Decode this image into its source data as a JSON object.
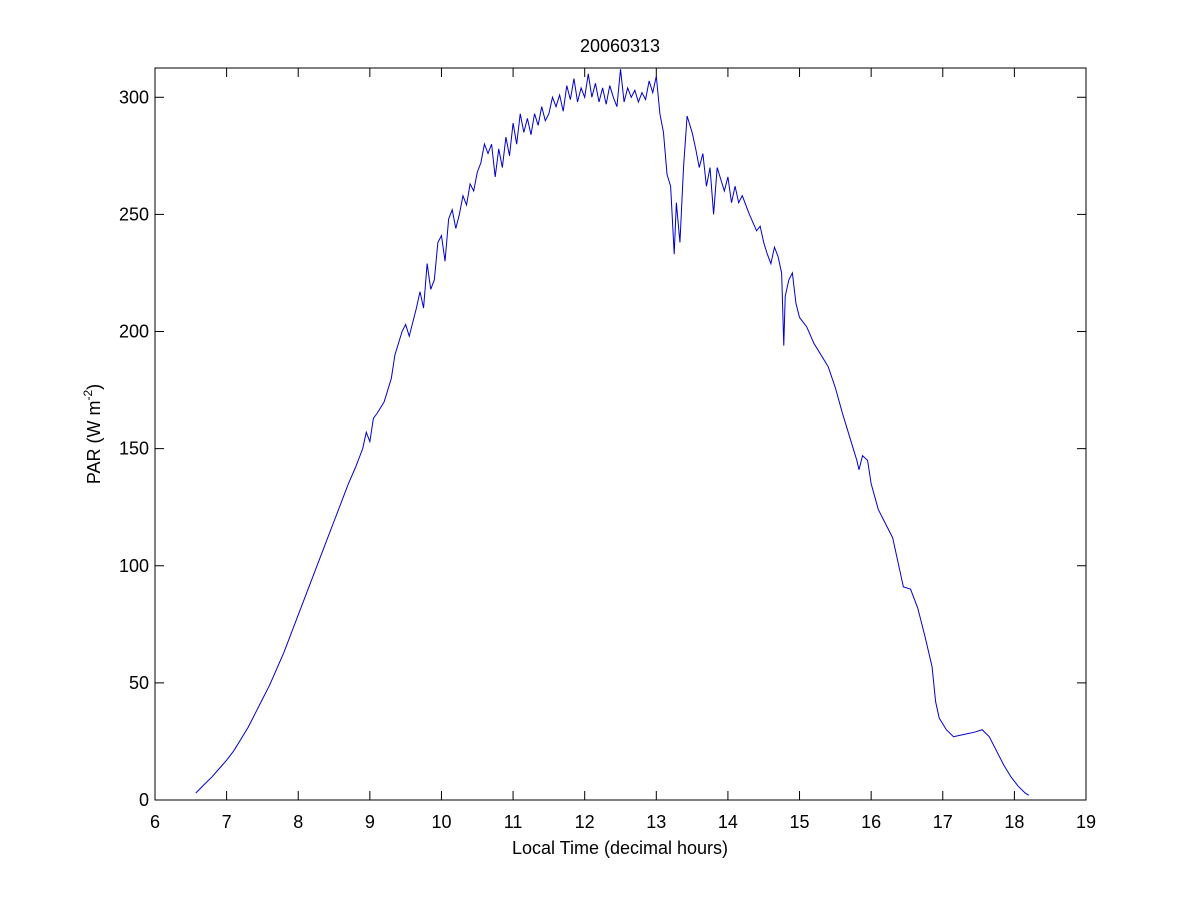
{
  "chart_data": {
    "type": "line",
    "title": "20060313",
    "xlabel": "Local Time (decimal hours)",
    "ylabel": {
      "text": "PAR (W m",
      "superscript": "-2",
      "suffix": ")"
    },
    "color": "#0000cc",
    "xlim": [
      6,
      19
    ],
    "xticks": [
      6,
      7,
      8,
      9,
      10,
      11,
      12,
      13,
      14,
      15,
      16,
      17,
      18,
      19
    ],
    "ylim": [
      0,
      312.5
    ],
    "yticks": [
      0,
      50,
      100,
      150,
      200,
      250,
      300
    ],
    "grid": false,
    "x": [
      6.57,
      6.7,
      6.8,
      6.9,
      7.0,
      7.1,
      7.2,
      7.3,
      7.4,
      7.5,
      7.6,
      7.7,
      7.8,
      7.9,
      8.0,
      8.1,
      8.2,
      8.3,
      8.4,
      8.5,
      8.6,
      8.7,
      8.8,
      8.9,
      8.95,
      9.0,
      9.05,
      9.1,
      9.2,
      9.3,
      9.35,
      9.45,
      9.5,
      9.55,
      9.65,
      9.7,
      9.75,
      9.8,
      9.85,
      9.9,
      9.95,
      10.0,
      10.05,
      10.1,
      10.15,
      10.2,
      10.25,
      10.3,
      10.35,
      10.4,
      10.45,
      10.5,
      10.55,
      10.6,
      10.65,
      10.7,
      10.75,
      10.8,
      10.85,
      10.9,
      10.95,
      11.0,
      11.05,
      11.1,
      11.15,
      11.2,
      11.25,
      11.3,
      11.35,
      11.4,
      11.45,
      11.5,
      11.55,
      11.6,
      11.65,
      11.7,
      11.75,
      11.8,
      11.85,
      11.9,
      11.95,
      12.0,
      12.05,
      12.1,
      12.15,
      12.2,
      12.25,
      12.3,
      12.35,
      12.4,
      12.45,
      12.5,
      12.55,
      12.6,
      12.65,
      12.7,
      12.75,
      12.8,
      12.85,
      12.9,
      12.95,
      13.0,
      13.05,
      13.1,
      13.15,
      13.2,
      13.25,
      13.28,
      13.33,
      13.38,
      13.43,
      13.5,
      13.55,
      13.6,
      13.65,
      13.7,
      13.75,
      13.8,
      13.85,
      13.9,
      13.95,
      14.0,
      14.05,
      14.1,
      14.15,
      14.2,
      14.3,
      14.4,
      14.45,
      14.5,
      14.55,
      14.6,
      14.65,
      14.7,
      14.75,
      14.78,
      14.8,
      14.85,
      14.9,
      14.95,
      15.0,
      15.1,
      15.2,
      15.3,
      15.4,
      15.5,
      15.6,
      15.7,
      15.8,
      15.83,
      15.88,
      15.95,
      16.0,
      16.1,
      16.2,
      16.3,
      16.4,
      16.45,
      16.55,
      16.65,
      16.75,
      16.85,
      16.9,
      16.95,
      17.05,
      17.15,
      17.3,
      17.45,
      17.55,
      17.65,
      17.75,
      17.85,
      17.95,
      18.05,
      18.15,
      18.2
    ],
    "values": [
      3,
      7,
      10,
      13.5,
      17,
      21,
      26,
      31,
      37,
      43,
      49,
      56,
      63,
      71,
      79,
      87,
      95,
      103,
      111,
      119,
      127,
      135,
      142,
      150,
      157,
      153,
      163,
      165,
      170,
      180,
      190,
      200,
      203,
      198,
      210,
      217,
      210,
      229,
      218,
      222,
      238,
      241,
      230,
      248,
      252,
      244,
      250,
      258,
      254,
      263,
      260,
      268,
      272,
      280,
      276,
      280,
      266,
      278,
      270,
      283,
      275,
      289,
      280,
      293,
      285,
      291,
      284,
      293,
      288,
      296,
      290,
      293,
      300,
      296,
      301,
      294,
      305,
      299,
      308,
      298,
      304,
      300,
      310,
      300,
      306,
      298,
      304,
      297,
      305,
      300,
      296,
      312,
      298,
      304,
      300,
      303,
      298,
      302,
      299,
      307,
      302,
      309,
      293,
      285,
      267,
      262,
      233,
      255,
      238,
      270,
      292,
      285,
      278,
      270,
      276,
      262,
      270,
      250,
      270,
      265,
      260,
      266,
      255,
      262,
      255,
      258,
      250,
      243,
      245,
      238,
      233,
      229,
      236,
      232,
      225,
      194,
      215,
      222,
      225,
      212,
      206,
      202,
      195,
      190,
      185,
      176,
      165,
      155,
      145,
      141,
      147,
      145,
      135,
      124,
      118,
      112,
      98,
      91,
      90,
      82,
      70,
      57,
      42,
      35,
      30,
      27,
      28,
      29,
      30,
      27,
      21,
      15,
      10,
      6,
      3,
      2
    ]
  }
}
